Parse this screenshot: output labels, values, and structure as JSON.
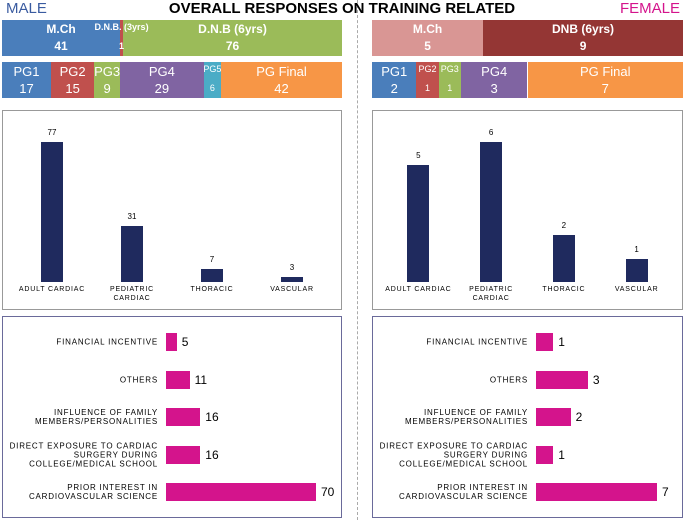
{
  "title": "OVERALL RESPONSES ON TRAINING RELATED",
  "left_label": "MALE",
  "right_label": "FEMALE",
  "chart_data": [
    {
      "type": "stacked-bar",
      "categories": [
        "M.Ch",
        "D.N.B. (3yrs)",
        "D.N.B (6yrs)"
      ],
      "values": [
        41,
        1,
        76
      ],
      "colors": [
        "#4a7ebb",
        "#c0504d",
        "#9bbb59"
      ]
    },
    {
      "type": "stacked-bar",
      "categories": [
        "PG1",
        "PG2",
        "PG3",
        "PG4",
        "PG5",
        "PG Final"
      ],
      "values": [
        17,
        15,
        9,
        29,
        6,
        42
      ],
      "colors": [
        "#4a7ebb",
        "#c0504d",
        "#9bbb59",
        "#8064a2",
        "#4bacc6",
        "#f79646"
      ]
    },
    {
      "type": "stacked-bar",
      "categories": [
        "M.Ch",
        "DNB (6yrs)"
      ],
      "values": [
        5,
        9
      ],
      "colors": [
        "#d99694",
        "#943634"
      ]
    },
    {
      "type": "stacked-bar",
      "categories": [
        "PG1",
        "PG2",
        "PG3",
        "PG4",
        "PG Final"
      ],
      "values": [
        2,
        1,
        1,
        3,
        7
      ],
      "colors": [
        "#4a7ebb",
        "#c0504d",
        "#9bbb59",
        "#8064a2",
        "#f79646"
      ]
    },
    {
      "type": "bar",
      "categories": [
        "ADULT CARDIAC",
        "PEDIATRIC CARDIAC",
        "THORACIC",
        "VASCULAR"
      ],
      "values": [
        77,
        31,
        7,
        3
      ],
      "color": "#1f2a5e"
    },
    {
      "type": "bar",
      "categories": [
        "ADULT CARDIAC",
        "PEDIATRIC CARDIAC",
        "THORACIC",
        "VASCULAR"
      ],
      "values": [
        5,
        6,
        2,
        1
      ],
      "color": "#1f2a5e"
    },
    {
      "type": "hbar",
      "categories": [
        "FINANCIAL INCENTIVE",
        "OTHERS",
        "INFLUENCE OF FAMILY MEMBERS/PERSONALITIES",
        "DIRECT EXPOSURE TO CARDIAC SURGERY DURING COLLEGE/MEDICAL SCHOOL",
        "PRIOR INTEREST IN CARDIOVASCULAR SCIENCE"
      ],
      "values": [
        5,
        11,
        16,
        16,
        70
      ],
      "color": "#d4148c"
    },
    {
      "type": "hbar",
      "categories": [
        "FINANCIAL INCENTIVE",
        "OTHERS",
        "INFLUENCE OF FAMILY MEMBERS/PERSONALITIES",
        "DIRECT EXPOSURE TO CARDIAC SURGERY DURING COLLEGE/MEDICAL SCHOOL",
        "PRIOR INTEREST IN CARDIOVASCULAR SCIENCE"
      ],
      "values": [
        1,
        3,
        2,
        1,
        7
      ],
      "color": "#d4148c"
    }
  ]
}
